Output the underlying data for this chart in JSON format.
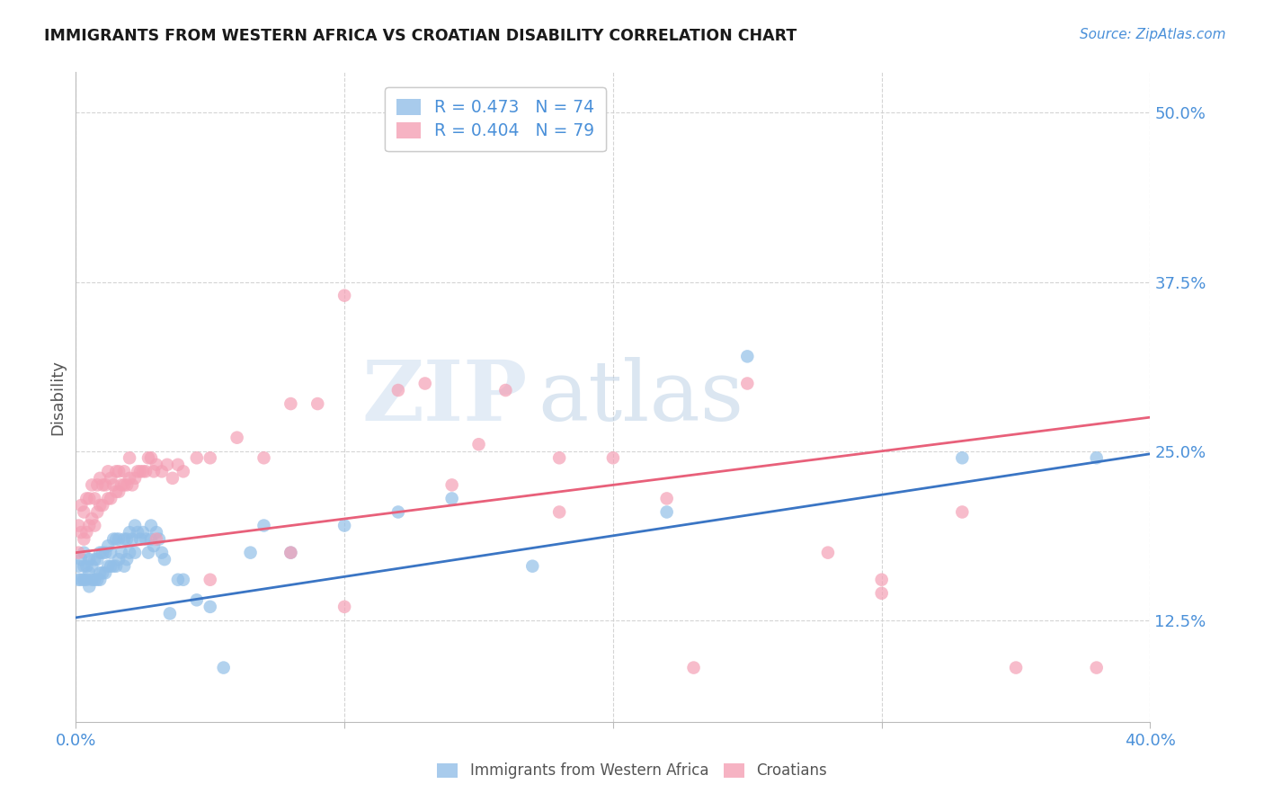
{
  "title": "IMMIGRANTS FROM WESTERN AFRICA VS CROATIAN DISABILITY CORRELATION CHART",
  "source_text": "Source: ZipAtlas.com",
  "ylabel": "Disability",
  "xlim": [
    0.0,
    0.4
  ],
  "ylim": [
    0.05,
    0.53
  ],
  "ytick_positions": [
    0.125,
    0.25,
    0.375,
    0.5
  ],
  "ytick_labels": [
    "12.5%",
    "25.0%",
    "37.5%",
    "50.0%"
  ],
  "watermark_line1": "ZIP",
  "watermark_line2": "atlas",
  "blue_color": "#92bfe8",
  "pink_color": "#f4a0b5",
  "blue_line_color": "#3a75c4",
  "pink_line_color": "#e8607a",
  "legend_blue_label": "R = 0.473   N = 74",
  "legend_pink_label": "R = 0.404   N = 79",
  "title_color": "#1a1a1a",
  "axis_label_color": "#555555",
  "tick_color": "#4a90d9",
  "grid_color": "#d0d0d0",
  "background_color": "#ffffff",
  "blue_r": 0.473,
  "pink_r": 0.404,
  "blue_line_x0": 0.0,
  "blue_line_y0": 0.127,
  "blue_line_x1": 0.4,
  "blue_line_y1": 0.248,
  "pink_line_x0": 0.0,
  "pink_line_y0": 0.175,
  "pink_line_x1": 0.4,
  "pink_line_y1": 0.275,
  "blue_scatter_x": [
    0.001,
    0.001,
    0.002,
    0.002,
    0.003,
    0.003,
    0.003,
    0.004,
    0.004,
    0.005,
    0.005,
    0.005,
    0.006,
    0.006,
    0.007,
    0.007,
    0.008,
    0.008,
    0.009,
    0.009,
    0.009,
    0.01,
    0.01,
    0.011,
    0.011,
    0.012,
    0.012,
    0.013,
    0.013,
    0.014,
    0.014,
    0.015,
    0.015,
    0.016,
    0.016,
    0.017,
    0.018,
    0.018,
    0.019,
    0.019,
    0.02,
    0.02,
    0.021,
    0.022,
    0.022,
    0.023,
    0.024,
    0.025,
    0.026,
    0.027,
    0.028,
    0.028,
    0.029,
    0.03,
    0.031,
    0.032,
    0.033,
    0.035,
    0.038,
    0.04,
    0.045,
    0.05,
    0.055,
    0.065,
    0.07,
    0.08,
    0.1,
    0.12,
    0.14,
    0.17,
    0.22,
    0.25,
    0.33,
    0.38
  ],
  "blue_scatter_y": [
    0.155,
    0.165,
    0.155,
    0.17,
    0.155,
    0.165,
    0.175,
    0.155,
    0.165,
    0.15,
    0.16,
    0.17,
    0.155,
    0.165,
    0.155,
    0.17,
    0.155,
    0.17,
    0.155,
    0.16,
    0.175,
    0.16,
    0.175,
    0.16,
    0.175,
    0.165,
    0.18,
    0.165,
    0.175,
    0.165,
    0.185,
    0.165,
    0.185,
    0.17,
    0.185,
    0.175,
    0.165,
    0.185,
    0.17,
    0.185,
    0.175,
    0.19,
    0.185,
    0.175,
    0.195,
    0.19,
    0.185,
    0.19,
    0.185,
    0.175,
    0.185,
    0.195,
    0.18,
    0.19,
    0.185,
    0.175,
    0.17,
    0.13,
    0.155,
    0.155,
    0.14,
    0.135,
    0.09,
    0.175,
    0.195,
    0.175,
    0.195,
    0.205,
    0.215,
    0.165,
    0.205,
    0.32,
    0.245,
    0.245
  ],
  "pink_scatter_x": [
    0.001,
    0.001,
    0.002,
    0.002,
    0.003,
    0.003,
    0.004,
    0.004,
    0.005,
    0.005,
    0.006,
    0.006,
    0.007,
    0.007,
    0.008,
    0.008,
    0.009,
    0.009,
    0.01,
    0.01,
    0.011,
    0.012,
    0.012,
    0.013,
    0.013,
    0.014,
    0.015,
    0.015,
    0.016,
    0.016,
    0.017,
    0.018,
    0.018,
    0.019,
    0.02,
    0.02,
    0.021,
    0.022,
    0.023,
    0.024,
    0.025,
    0.026,
    0.027,
    0.028,
    0.029,
    0.03,
    0.032,
    0.034,
    0.036,
    0.038,
    0.04,
    0.045,
    0.05,
    0.06,
    0.07,
    0.08,
    0.09,
    0.1,
    0.12,
    0.13,
    0.15,
    0.16,
    0.18,
    0.2,
    0.22,
    0.25,
    0.28,
    0.3,
    0.33,
    0.35,
    0.03,
    0.05,
    0.08,
    0.1,
    0.14,
    0.18,
    0.23,
    0.3,
    0.38
  ],
  "pink_scatter_y": [
    0.175,
    0.195,
    0.19,
    0.21,
    0.185,
    0.205,
    0.19,
    0.215,
    0.195,
    0.215,
    0.2,
    0.225,
    0.195,
    0.215,
    0.205,
    0.225,
    0.21,
    0.23,
    0.21,
    0.225,
    0.225,
    0.215,
    0.235,
    0.215,
    0.23,
    0.225,
    0.22,
    0.235,
    0.22,
    0.235,
    0.225,
    0.225,
    0.235,
    0.225,
    0.23,
    0.245,
    0.225,
    0.23,
    0.235,
    0.235,
    0.235,
    0.235,
    0.245,
    0.245,
    0.235,
    0.24,
    0.235,
    0.24,
    0.23,
    0.24,
    0.235,
    0.245,
    0.245,
    0.26,
    0.245,
    0.285,
    0.285,
    0.365,
    0.295,
    0.3,
    0.255,
    0.295,
    0.245,
    0.245,
    0.215,
    0.3,
    0.175,
    0.145,
    0.205,
    0.09,
    0.185,
    0.155,
    0.175,
    0.135,
    0.225,
    0.205,
    0.09,
    0.155,
    0.09
  ]
}
